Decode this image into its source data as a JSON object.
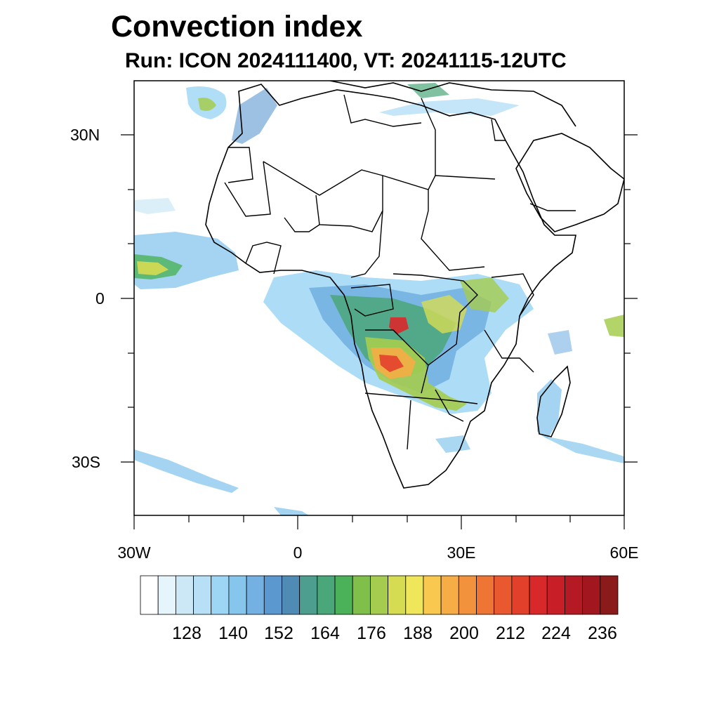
{
  "title": "Convection index",
  "subtitle": "Run: ICON 2024111400,  VT: 20241115-12UTC",
  "map": {
    "lon_range": [
      -30,
      60
    ],
    "lat_range": [
      -40,
      40
    ],
    "lat_labels": [
      "30N",
      "0",
      "30S"
    ],
    "lon_labels": [
      "30W",
      "0",
      "30E",
      "60E"
    ]
  },
  "colorbar": {
    "labels": [
      "128",
      "140",
      "152",
      "164",
      "176",
      "188",
      "200",
      "212",
      "224",
      "236"
    ],
    "colors": [
      "#ffffff",
      "#e6f4fb",
      "#cce8f6",
      "#b7e0f6",
      "#9dd6f5",
      "#86c6ec",
      "#74b1e2",
      "#5b98cf",
      "#4f8bb5",
      "#4d9e8e",
      "#4aa77a",
      "#4bb25a",
      "#7fbf4a",
      "#a5cc4f",
      "#d6dc52",
      "#f0e65a",
      "#f8c94e",
      "#f6ad45",
      "#f3923c",
      "#ef7534",
      "#e9582e",
      "#e3402c",
      "#d9282a",
      "#c81e28",
      "#b51a24",
      "#a21620",
      "#8b1a1a"
    ]
  }
}
